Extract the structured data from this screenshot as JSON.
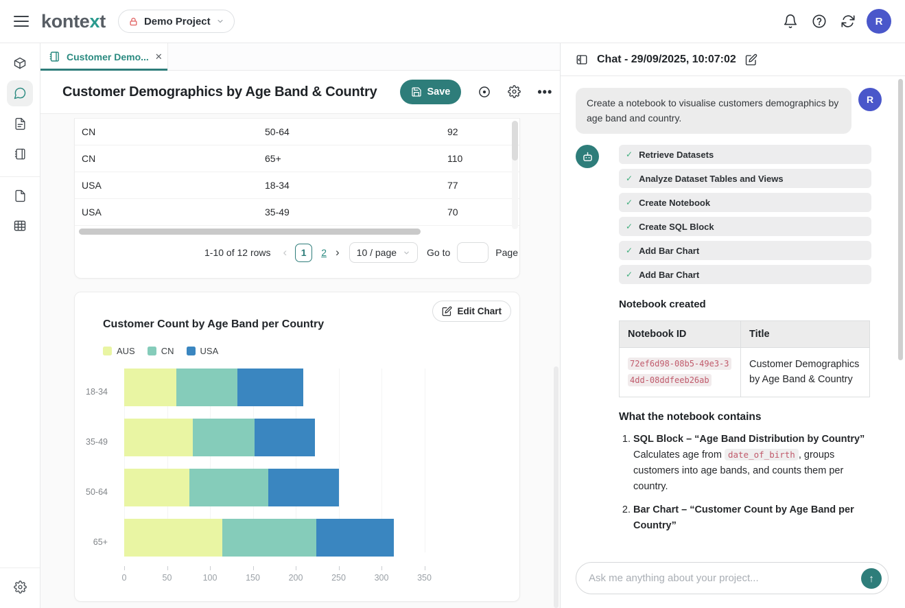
{
  "topbar": {
    "logo_pre": "konte",
    "logo_accent": "x",
    "logo_post": "t",
    "project_label": "Demo Project",
    "avatar_initial": "R"
  },
  "sidebar": {
    "items": [
      "packages",
      "chat",
      "documents",
      "notebooks",
      "files",
      "tables",
      "settings"
    ],
    "active": "chat"
  },
  "tabbar": {
    "active_tab_label": "Customer Demo..."
  },
  "doc": {
    "title": "Customer Demographics by Age Band & Country",
    "save_label": "Save"
  },
  "data_table": {
    "rows": [
      [
        "CN",
        "50-64",
        "92"
      ],
      [
        "CN",
        "65+",
        "110"
      ],
      [
        "USA",
        "18-34",
        "77"
      ],
      [
        "USA",
        "35-49",
        "70"
      ]
    ]
  },
  "pagination": {
    "summary": "1-10 of 12 rows",
    "pages": [
      "1",
      "2"
    ],
    "active_page": "1",
    "page_size": "10 / page",
    "goto_label": "Go to",
    "goto_value": "",
    "page_label": "Page"
  },
  "chart_card": {
    "edit_button_label": "Edit Chart",
    "chart_data": {
      "type": "bar",
      "orientation": "horizontal",
      "stacked": true,
      "title": "Customer Count by Age Band per Country",
      "categories": [
        "18-34",
        "35-49",
        "50-64",
        "65+"
      ],
      "series": [
        {
          "name": "AUS",
          "color": "#e9f5a3",
          "values": [
            61,
            80,
            76,
            114
          ]
        },
        {
          "name": "CN",
          "color": "#85ccba",
          "values": [
            71,
            72,
            92,
            110
          ]
        },
        {
          "name": "USA",
          "color": "#3a86c0",
          "values": [
            77,
            70,
            82,
            90
          ]
        }
      ],
      "xlim": [
        0,
        350
      ],
      "xticks": [
        0,
        50,
        100,
        150,
        200,
        250,
        300,
        350
      ],
      "legend_position": "top-left",
      "grid": true
    }
  },
  "chat": {
    "panel_title": "Chat - 29/09/2025, 10:07:02",
    "user_message": "Create a notebook to visualise customers demographics by age band and country.",
    "user_avatar_initial": "R",
    "tasks": [
      "Retrieve Datasets",
      "Analyze Dataset Tables and Views",
      "Create Notebook",
      "Create SQL Block",
      "Add Bar Chart",
      "Add Bar Chart"
    ],
    "notebook_created": {
      "heading": "Notebook created",
      "columns": [
        "Notebook ID",
        "Title"
      ],
      "notebook_id": "72ef6d98-08b5-49e3-34dd-08ddfeeb26ab",
      "notebook_title": "Customer Demographics by Age Band & Country"
    },
    "contains": {
      "heading": "What the notebook contains",
      "items": [
        {
          "bold": "SQL Block – “Age Band Distribution by Country”",
          "text_before": "Calculates age from ",
          "code": "date_of_birth",
          "text_after": ", groups customers into age bands, and counts them per country."
        },
        {
          "bold": "Bar Chart – “Customer Count by Age Band per Country”",
          "text_before": "",
          "code": "",
          "text_after": ""
        }
      ]
    },
    "input_placeholder": "Ask me anything about your project..."
  },
  "colors": {
    "accent_teal": "#2e7d7a",
    "teal_text": "#2a8a80",
    "avatar_blue": "#4a57ca",
    "code_pink": "#c05a6b",
    "check_green": "#3fae7c"
  }
}
